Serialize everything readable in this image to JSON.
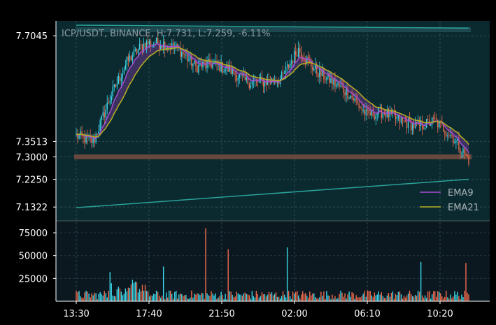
{
  "chart_data": [
    {
      "type": "candlestick",
      "title": "ICP/USDT, BINANCE, H:7.731, L:7.259, -6.11%",
      "ylim": [
        7.1,
        7.74
      ],
      "y_ticks": [
        "7.1322",
        "7.2250",
        "7.3000",
        "7.3513",
        "7.7045"
      ],
      "y_tick_values": [
        7.1322,
        7.225,
        7.3,
        7.3513,
        7.7045
      ],
      "legend": {
        "placement": "lower-right",
        "entries": [
          "EMA9",
          "EMA21"
        ]
      },
      "series": [
        {
          "name": "EMA9",
          "color": "#a64dcf"
        },
        {
          "name": "EMA21",
          "color": "#b8b020"
        }
      ],
      "close_profile": {
        "times": [
          "13:30",
          "14:30",
          "15:30",
          "16:30",
          "17:00",
          "17:40",
          "18:40",
          "19:40",
          "20:40",
          "21:50",
          "22:50",
          "23:50",
          "00:50",
          "02:00",
          "03:00",
          "04:00",
          "05:00",
          "06:10",
          "07:10",
          "08:10",
          "09:10",
          "10:20",
          "11:00",
          "11:30"
        ],
        "values": [
          7.37,
          7.35,
          7.5,
          7.62,
          7.68,
          7.68,
          7.66,
          7.6,
          7.61,
          7.59,
          7.55,
          7.55,
          7.56,
          7.66,
          7.59,
          7.55,
          7.51,
          7.44,
          7.45,
          7.42,
          7.4,
          7.42,
          7.37,
          7.29
        ]
      },
      "resistance_line": {
        "from": 7.74,
        "to": 7.73,
        "color": "#2aa198"
      },
      "support_line": {
        "from": 7.13,
        "to": 7.225,
        "color": "#2aa198"
      },
      "horizontal_band": {
        "value": 7.3,
        "color": "#6b4a3e"
      },
      "grid": true,
      "colors": {
        "up": "#3dd6e8",
        "down": "#ef6a4c",
        "background": "#0b2a30"
      }
    },
    {
      "type": "bar",
      "title": "",
      "ylim": [
        0,
        85000
      ],
      "y_ticks": [
        "25000",
        "50000",
        "75000"
      ],
      "y_tick_values": [
        25000,
        50000,
        75000
      ],
      "x_ticks": [
        "13:30",
        "17:40",
        "21:50",
        "02:00",
        "06:10",
        "10:20"
      ],
      "grid": true,
      "colors": {
        "up": "#3dd6e8",
        "down": "#ef6a4c",
        "background": "#0b1820"
      }
    }
  ]
}
